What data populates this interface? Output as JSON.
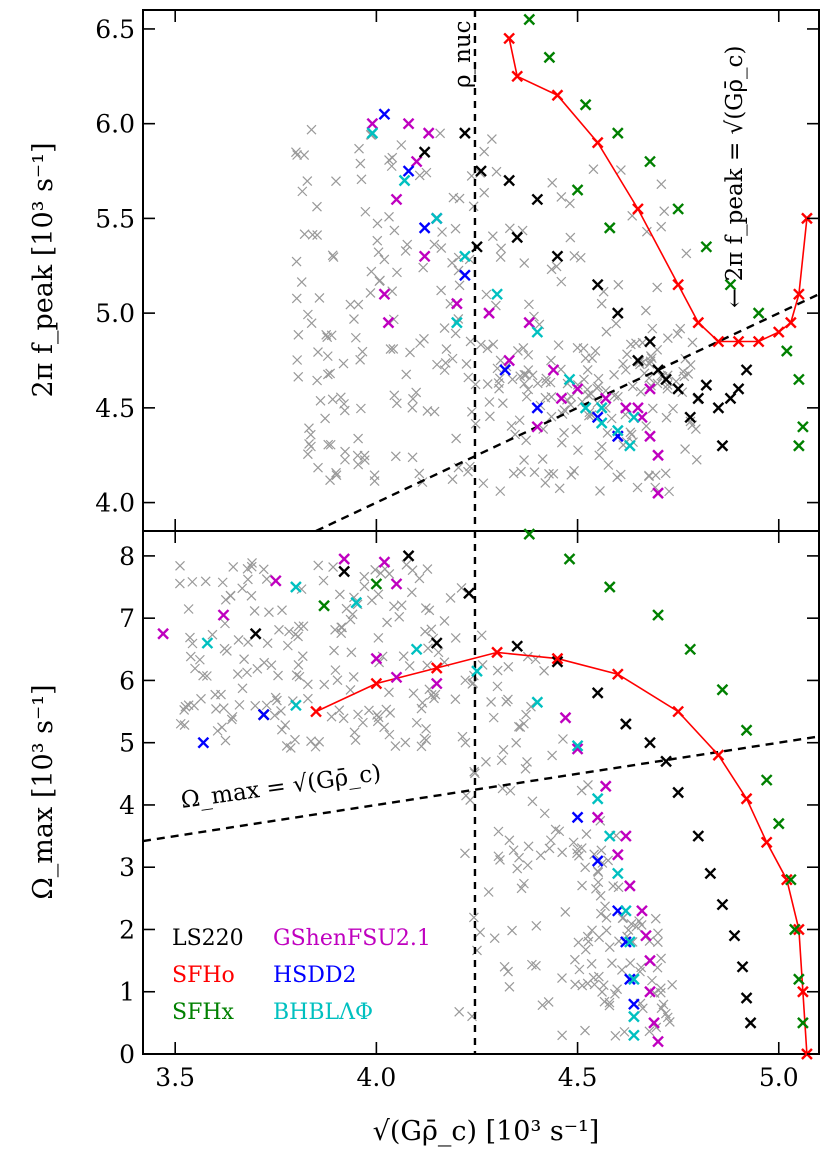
{
  "chart_data": [
    {
      "panel": "top",
      "type": "scatter",
      "ylabel": "2π f_peak [10³ s⁻¹]",
      "xlabel": "",
      "xlim": [
        3.42,
        5.1
      ],
      "ylim": [
        3.85,
        6.6
      ],
      "yticks": [
        "4.0",
        "4.5",
        "5.0",
        "5.5",
        "6.0",
        "6.5"
      ],
      "annotations": {
        "rho_nuc": "ρ_nuc",
        "relation": "← 2π f_peak = √(Gρ̄_c)"
      },
      "vline_x": 4.245,
      "reference_line": [
        [
          3.42,
          3.42
        ],
        [
          5.1,
          5.1
        ]
      ],
      "series": [
        {
          "name": "GShenFSU2.1",
          "color": "#bf00bf",
          "points": [
            [
              3.99,
              6.0
            ],
            [
              4.08,
              6.0
            ],
            [
              4.13,
              5.95
            ],
            [
              4.1,
              5.8
            ],
            [
              4.05,
              5.6
            ],
            [
              4.15,
              5.5
            ],
            [
              4.12,
              5.3
            ],
            [
              4.02,
              5.1
            ],
            [
              4.2,
              5.05
            ],
            [
              4.28,
              5.0
            ],
            [
              4.38,
              4.95
            ],
            [
              4.33,
              4.75
            ],
            [
              4.44,
              4.7
            ],
            [
              4.5,
              4.6
            ],
            [
              4.57,
              4.55
            ],
            [
              4.62,
              4.5
            ],
            [
              4.66,
              4.45
            ],
            [
              4.68,
              4.35
            ],
            [
              4.7,
              4.25
            ],
            [
              4.7,
              4.05
            ],
            [
              4.03,
              4.95
            ],
            [
              4.4,
              4.4
            ],
            [
              4.6,
              4.35
            ],
            [
              4.65,
              4.5
            ],
            [
              4.68,
              4.6
            ],
            [
              4.46,
              4.55
            ]
          ]
        },
        {
          "name": "LS220",
          "color": "#000000",
          "points": [
            [
              4.12,
              5.85
            ],
            [
              4.22,
              5.95
            ],
            [
              4.26,
              5.75
            ],
            [
              4.33,
              5.7
            ],
            [
              4.4,
              5.6
            ],
            [
              4.35,
              5.4
            ],
            [
              4.45,
              5.3
            ],
            [
              4.55,
              5.15
            ],
            [
              4.6,
              5.0
            ],
            [
              4.68,
              4.85
            ],
            [
              4.7,
              4.7
            ],
            [
              4.75,
              4.6
            ],
            [
              4.8,
              4.55
            ],
            [
              4.85,
              4.5
            ],
            [
              4.88,
              4.55
            ],
            [
              4.9,
              4.6
            ],
            [
              4.78,
              4.45
            ],
            [
              4.86,
              4.3
            ],
            [
              4.72,
              4.65
            ],
            [
              4.65,
              4.75
            ],
            [
              4.82,
              4.62
            ],
            [
              4.92,
              4.7
            ],
            [
              4.25,
              5.35
            ]
          ]
        },
        {
          "name": "SFHo",
          "color": "#ff0000",
          "line": true,
          "points": [
            [
              4.33,
              6.45
            ],
            [
              4.35,
              6.25
            ],
            [
              4.45,
              6.15
            ],
            [
              4.55,
              5.9
            ],
            [
              4.65,
              5.55
            ],
            [
              4.75,
              5.15
            ],
            [
              4.8,
              4.95
            ],
            [
              4.85,
              4.85
            ],
            [
              4.9,
              4.85
            ],
            [
              4.95,
              4.85
            ],
            [
              5.0,
              4.9
            ],
            [
              5.03,
              4.95
            ],
            [
              5.05,
              5.1
            ],
            [
              5.07,
              5.5
            ]
          ]
        },
        {
          "name": "HSDD2",
          "color": "#0000ff",
          "points": [
            [
              4.02,
              6.05
            ],
            [
              4.08,
              5.75
            ],
            [
              4.12,
              5.45
            ],
            [
              4.22,
              5.2
            ],
            [
              4.55,
              4.45
            ],
            [
              4.6,
              4.35
            ],
            [
              4.4,
              4.5
            ],
            [
              4.32,
              4.7
            ]
          ]
        },
        {
          "name": "SFHx",
          "color": "#008000",
          "points": [
            [
              4.38,
              6.55
            ],
            [
              4.43,
              6.35
            ],
            [
              4.52,
              6.1
            ],
            [
              4.6,
              5.95
            ],
            [
              4.68,
              5.8
            ],
            [
              4.75,
              5.55
            ],
            [
              4.82,
              5.35
            ],
            [
              4.88,
              5.15
            ],
            [
              4.95,
              5.0
            ],
            [
              5.02,
              4.8
            ],
            [
              5.05,
              4.65
            ],
            [
              5.06,
              4.4
            ],
            [
              5.05,
              4.3
            ],
            [
              4.5,
              5.65
            ],
            [
              4.58,
              5.45
            ]
          ]
        },
        {
          "name": "BHBLΛΦ",
          "color": "#00c0c0",
          "points": [
            [
              3.99,
              5.95
            ],
            [
              4.07,
              5.7
            ],
            [
              4.15,
              5.5
            ],
            [
              4.22,
              5.3
            ],
            [
              4.3,
              5.1
            ],
            [
              4.4,
              4.9
            ],
            [
              4.48,
              4.65
            ],
            [
              4.52,
              4.5
            ],
            [
              4.56,
              4.42
            ],
            [
              4.6,
              4.38
            ],
            [
              4.63,
              4.3
            ],
            [
              4.56,
              4.5
            ],
            [
              4.64,
              4.45
            ],
            [
              4.2,
              4.95
            ]
          ]
        }
      ]
    },
    {
      "panel": "bottom",
      "type": "scatter",
      "xlabel": "√(Gρ̄_c) [10³ s⁻¹]",
      "ylabel": "Ω_max [10³ s⁻¹]",
      "xlim": [
        3.42,
        5.1
      ],
      "ylim": [
        0,
        8.4
      ],
      "xticks": [
        "3.5",
        "4.0",
        "4.5",
        "5.0"
      ],
      "yticks": [
        "0",
        "1",
        "2",
        "3",
        "4",
        "5",
        "6",
        "7",
        "8"
      ],
      "annotations": {
        "relation": "Ω_max = √(Gρ̄_c)"
      },
      "vline_x": 4.245,
      "reference_line": [
        [
          3.42,
          3.42
        ],
        [
          5.1,
          5.1
        ]
      ],
      "series": [
        {
          "name": "GShenFSU2.1",
          "color": "#bf00bf",
          "points": [
            [
              3.47,
              6.75
            ],
            [
              3.62,
              7.05
            ],
            [
              3.75,
              7.6
            ],
            [
              3.92,
              7.95
            ],
            [
              4.02,
              7.9
            ],
            [
              4.05,
              7.55
            ],
            [
              4.0,
              6.35
            ],
            [
              4.05,
              6.05
            ],
            [
              4.15,
              5.95
            ],
            [
              4.55,
              3.8
            ],
            [
              4.6,
              3.2
            ],
            [
              4.63,
              2.7
            ],
            [
              4.66,
              2.3
            ],
            [
              4.67,
              1.9
            ],
            [
              4.68,
              1.5
            ],
            [
              4.68,
              1.0
            ],
            [
              4.69,
              0.5
            ],
            [
              4.7,
              0.2
            ],
            [
              4.57,
              4.3
            ],
            [
              4.5,
              4.9
            ],
            [
              4.47,
              5.4
            ],
            [
              4.62,
              3.5
            ]
          ]
        },
        {
          "name": "LS220",
          "color": "#000000",
          "points": [
            [
              3.7,
              6.75
            ],
            [
              3.92,
              7.75
            ],
            [
              4.08,
              8.0
            ],
            [
              4.23,
              7.4
            ],
            [
              4.15,
              6.6
            ],
            [
              4.35,
              6.55
            ],
            [
              4.45,
              6.3
            ],
            [
              4.55,
              5.8
            ],
            [
              4.62,
              5.3
            ],
            [
              4.68,
              5.0
            ],
            [
              4.72,
              4.7
            ],
            [
              4.75,
              4.2
            ],
            [
              4.8,
              3.5
            ],
            [
              4.83,
              2.9
            ],
            [
              4.86,
              2.4
            ],
            [
              4.89,
              1.9
            ],
            [
              4.91,
              1.4
            ],
            [
              4.92,
              0.9
            ],
            [
              4.93,
              0.5
            ],
            [
              3.72,
              5.45
            ]
          ]
        },
        {
          "name": "SFHo",
          "color": "#ff0000",
          "line": true,
          "points": [
            [
              3.85,
              5.5
            ],
            [
              4.0,
              5.95
            ],
            [
              4.15,
              6.2
            ],
            [
              4.3,
              6.45
            ],
            [
              4.45,
              6.35
            ],
            [
              4.6,
              6.1
            ],
            [
              4.75,
              5.5
            ],
            [
              4.85,
              4.8
            ],
            [
              4.92,
              4.1
            ],
            [
              4.97,
              3.4
            ],
            [
              5.02,
              2.8
            ],
            [
              5.05,
              2.0
            ],
            [
              5.06,
              1.0
            ],
            [
              5.07,
              0.0
            ]
          ]
        },
        {
          "name": "HSDD2",
          "color": "#0000ff",
          "points": [
            [
              3.57,
              5.0
            ],
            [
              3.72,
              5.45
            ],
            [
              4.6,
              2.3
            ],
            [
              4.62,
              1.8
            ],
            [
              4.63,
              1.2
            ],
            [
              4.64,
              0.8
            ],
            [
              4.55,
              3.1
            ],
            [
              4.5,
              3.8
            ]
          ]
        },
        {
          "name": "SFHx",
          "color": "#008000",
          "points": [
            [
              4.38,
              8.35
            ],
            [
              4.48,
              7.95
            ],
            [
              4.58,
              7.5
            ],
            [
              4.7,
              7.05
            ],
            [
              4.78,
              6.5
            ],
            [
              4.86,
              5.85
            ],
            [
              4.92,
              5.2
            ],
            [
              4.97,
              4.4
            ],
            [
              5.0,
              3.7
            ],
            [
              5.03,
              2.8
            ],
            [
              5.04,
              2.0
            ],
            [
              5.05,
              1.2
            ],
            [
              5.06,
              0.5
            ],
            [
              3.87,
              7.2
            ],
            [
              4.0,
              7.55
            ]
          ]
        },
        {
          "name": "BHBLΛΦ",
          "color": "#00c0c0",
          "points": [
            [
              3.58,
              6.6
            ],
            [
              3.8,
              7.5
            ],
            [
              3.95,
              7.25
            ],
            [
              4.1,
              6.5
            ],
            [
              4.25,
              6.15
            ],
            [
              4.4,
              5.65
            ],
            [
              4.5,
              4.95
            ],
            [
              4.55,
              4.1
            ],
            [
              4.58,
              3.5
            ],
            [
              4.6,
              2.9
            ],
            [
              4.62,
              2.3
            ],
            [
              4.63,
              1.8
            ],
            [
              4.64,
              1.2
            ],
            [
              4.64,
              0.6
            ],
            [
              4.64,
              0.3
            ],
            [
              3.8,
              5.6
            ]
          ]
        }
      ]
    }
  ],
  "legend": [
    {
      "name": "LS220",
      "color": "#000000"
    },
    {
      "name": "SFHo",
      "color": "#ff0000"
    },
    {
      "name": "SFHx",
      "color": "#008000"
    },
    {
      "name": "GShenFSU2.1",
      "color": "#bf00bf"
    },
    {
      "name": "HSDD2",
      "color": "#0000ff"
    },
    {
      "name": "BHBLΛΦ",
      "color": "#00c0c0"
    }
  ],
  "background_cloud_color": "#999999",
  "line_color": "#ff0000"
}
